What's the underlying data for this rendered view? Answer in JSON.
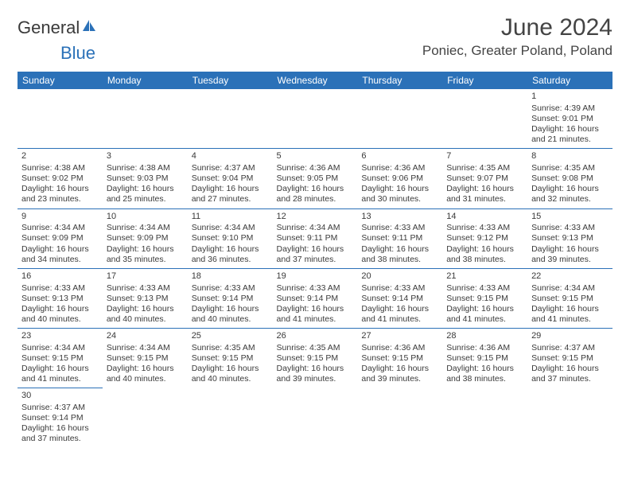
{
  "brand": {
    "part1": "General",
    "part2": "Blue",
    "icon_color": "#2b71b8"
  },
  "title": "June 2024",
  "location": "Poniec, Greater Poland, Poland",
  "colors": {
    "header_bg": "#2b71b8",
    "header_fg": "#ffffff",
    "border": "#2b71b8",
    "text": "#3a3a3a",
    "background": "#ffffff"
  },
  "typography": {
    "title_fontsize": 30,
    "location_fontsize": 17,
    "dayheader_fontsize": 12,
    "cell_fontsize": 10.5
  },
  "layout": {
    "columns": 7,
    "rows": 6,
    "first_weekday_index": 6
  },
  "weekdays": [
    "Sunday",
    "Monday",
    "Tuesday",
    "Wednesday",
    "Thursday",
    "Friday",
    "Saturday"
  ],
  "days": {
    "1": {
      "sunrise": "4:39 AM",
      "sunset": "9:01 PM",
      "daylight": "16 hours and 21 minutes."
    },
    "2": {
      "sunrise": "4:38 AM",
      "sunset": "9:02 PM",
      "daylight": "16 hours and 23 minutes."
    },
    "3": {
      "sunrise": "4:38 AM",
      "sunset": "9:03 PM",
      "daylight": "16 hours and 25 minutes."
    },
    "4": {
      "sunrise": "4:37 AM",
      "sunset": "9:04 PM",
      "daylight": "16 hours and 27 minutes."
    },
    "5": {
      "sunrise": "4:36 AM",
      "sunset": "9:05 PM",
      "daylight": "16 hours and 28 minutes."
    },
    "6": {
      "sunrise": "4:36 AM",
      "sunset": "9:06 PM",
      "daylight": "16 hours and 30 minutes."
    },
    "7": {
      "sunrise": "4:35 AM",
      "sunset": "9:07 PM",
      "daylight": "16 hours and 31 minutes."
    },
    "8": {
      "sunrise": "4:35 AM",
      "sunset": "9:08 PM",
      "daylight": "16 hours and 32 minutes."
    },
    "9": {
      "sunrise": "4:34 AM",
      "sunset": "9:09 PM",
      "daylight": "16 hours and 34 minutes."
    },
    "10": {
      "sunrise": "4:34 AM",
      "sunset": "9:09 PM",
      "daylight": "16 hours and 35 minutes."
    },
    "11": {
      "sunrise": "4:34 AM",
      "sunset": "9:10 PM",
      "daylight": "16 hours and 36 minutes."
    },
    "12": {
      "sunrise": "4:34 AM",
      "sunset": "9:11 PM",
      "daylight": "16 hours and 37 minutes."
    },
    "13": {
      "sunrise": "4:33 AM",
      "sunset": "9:11 PM",
      "daylight": "16 hours and 38 minutes."
    },
    "14": {
      "sunrise": "4:33 AM",
      "sunset": "9:12 PM",
      "daylight": "16 hours and 38 minutes."
    },
    "15": {
      "sunrise": "4:33 AM",
      "sunset": "9:13 PM",
      "daylight": "16 hours and 39 minutes."
    },
    "16": {
      "sunrise": "4:33 AM",
      "sunset": "9:13 PM",
      "daylight": "16 hours and 40 minutes."
    },
    "17": {
      "sunrise": "4:33 AM",
      "sunset": "9:13 PM",
      "daylight": "16 hours and 40 minutes."
    },
    "18": {
      "sunrise": "4:33 AM",
      "sunset": "9:14 PM",
      "daylight": "16 hours and 40 minutes."
    },
    "19": {
      "sunrise": "4:33 AM",
      "sunset": "9:14 PM",
      "daylight": "16 hours and 41 minutes."
    },
    "20": {
      "sunrise": "4:33 AM",
      "sunset": "9:14 PM",
      "daylight": "16 hours and 41 minutes."
    },
    "21": {
      "sunrise": "4:33 AM",
      "sunset": "9:15 PM",
      "daylight": "16 hours and 41 minutes."
    },
    "22": {
      "sunrise": "4:34 AM",
      "sunset": "9:15 PM",
      "daylight": "16 hours and 41 minutes."
    },
    "23": {
      "sunrise": "4:34 AM",
      "sunset": "9:15 PM",
      "daylight": "16 hours and 41 minutes."
    },
    "24": {
      "sunrise": "4:34 AM",
      "sunset": "9:15 PM",
      "daylight": "16 hours and 40 minutes."
    },
    "25": {
      "sunrise": "4:35 AM",
      "sunset": "9:15 PM",
      "daylight": "16 hours and 40 minutes."
    },
    "26": {
      "sunrise": "4:35 AM",
      "sunset": "9:15 PM",
      "daylight": "16 hours and 39 minutes."
    },
    "27": {
      "sunrise": "4:36 AM",
      "sunset": "9:15 PM",
      "daylight": "16 hours and 39 minutes."
    },
    "28": {
      "sunrise": "4:36 AM",
      "sunset": "9:15 PM",
      "daylight": "16 hours and 38 minutes."
    },
    "29": {
      "sunrise": "4:37 AM",
      "sunset": "9:15 PM",
      "daylight": "16 hours and 37 minutes."
    },
    "30": {
      "sunrise": "4:37 AM",
      "sunset": "9:14 PM",
      "daylight": "16 hours and 37 minutes."
    }
  },
  "labels": {
    "sunrise_prefix": "Sunrise: ",
    "sunset_prefix": "Sunset: ",
    "daylight_prefix": "Daylight: "
  }
}
